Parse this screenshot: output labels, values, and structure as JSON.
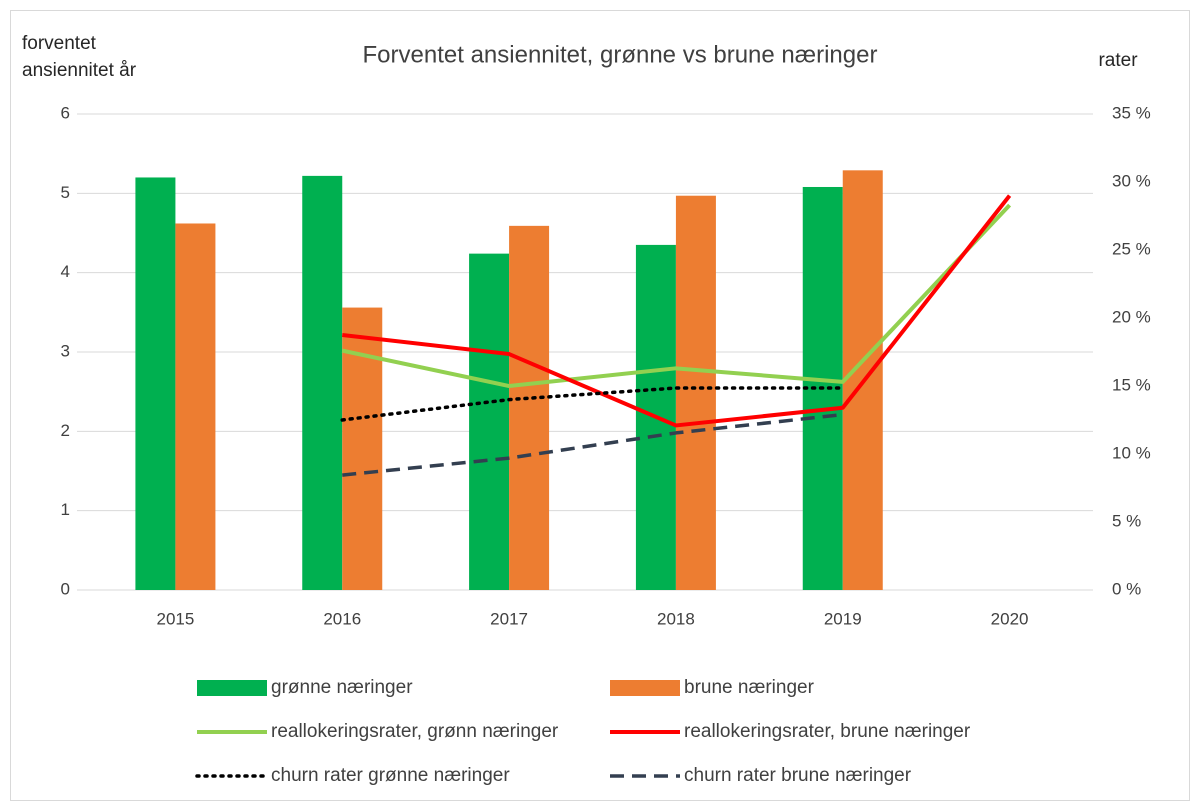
{
  "chart_data": {
    "type": "bar_line",
    "title": "Forventet ansiennitet, grønne vs brune næringer",
    "y_label": "forventet ansiennitet år",
    "y2_label": "rater",
    "categories": [
      "2015",
      "2016",
      "2017",
      "2018",
      "2019",
      "2020"
    ],
    "ylim": [
      0,
      6
    ],
    "yticks": [
      0,
      1,
      2,
      3,
      4,
      5,
      6
    ],
    "y2lim": [
      0,
      35
    ],
    "y2ticks": [
      {
        "value": 0,
        "label": "0 %"
      },
      {
        "value": 5,
        "label": "5 %"
      },
      {
        "value": 10,
        "label": "10 %"
      },
      {
        "value": 15,
        "label": "15 %"
      },
      {
        "value": 20,
        "label": "20 %"
      },
      {
        "value": 25,
        "label": "25 %"
      },
      {
        "value": 30,
        "label": "30 %"
      },
      {
        "value": 35,
        "label": "35 %"
      }
    ],
    "grid": true,
    "legend": "bottom",
    "series": [
      {
        "name": "grønne næringer",
        "kind": "bar",
        "color": "#00b050",
        "values": [
          5.2,
          5.22,
          4.24,
          4.35,
          5.08,
          null
        ]
      },
      {
        "name": "brune næringer",
        "kind": "bar",
        "color": "#ed7d31",
        "values": [
          4.62,
          3.56,
          4.59,
          4.97,
          5.29,
          null
        ]
      },
      {
        "name": "reallokeringsrater, grønn næringer",
        "kind": "line",
        "axis": "y2",
        "color": "#92d050",
        "dash": "solid",
        "values": [
          null,
          17.6,
          15.0,
          16.3,
          15.3,
          28.3
        ]
      },
      {
        "name": "reallokeringsrater, brune næringer",
        "kind": "line",
        "axis": "y2",
        "color": "#ff0000",
        "dash": "solid",
        "values": [
          null,
          18.75,
          17.35,
          12.1,
          13.4,
          29.0
        ]
      },
      {
        "name": "churn rater grønne næringer",
        "kind": "line",
        "axis": "y2",
        "color": "#000000",
        "dash": "dotted",
        "values": [
          null,
          12.5,
          14.0,
          14.85,
          14.85,
          null
        ]
      },
      {
        "name": "churn rater brune næringer",
        "kind": "line",
        "axis": "y2",
        "color": "#333f50",
        "dash": "dashed",
        "values": [
          null,
          8.45,
          9.7,
          11.55,
          12.9,
          null
        ]
      }
    ]
  }
}
